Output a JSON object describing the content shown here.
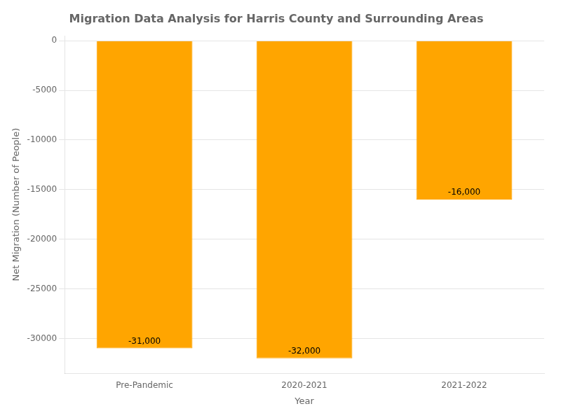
{
  "chart_data": {
    "type": "bar",
    "title": "Migration Data Analysis for Harris County and Surrounding Areas",
    "xlabel": "Year",
    "ylabel": "Net Migration (Number of People)",
    "categories": [
      "Pre-Pandemic",
      "2020-2021",
      "2021-2022"
    ],
    "values": [
      -31000,
      -32000,
      -16000
    ],
    "value_labels": [
      "-31,000",
      "-32,000",
      "-16,000"
    ],
    "data_labels": true,
    "color": "#FFA500",
    "ylim": [
      -33500,
      500
    ],
    "yticks": [
      0,
      -5000,
      -10000,
      -15000,
      -20000,
      -25000,
      -30000
    ],
    "grid": true
  }
}
